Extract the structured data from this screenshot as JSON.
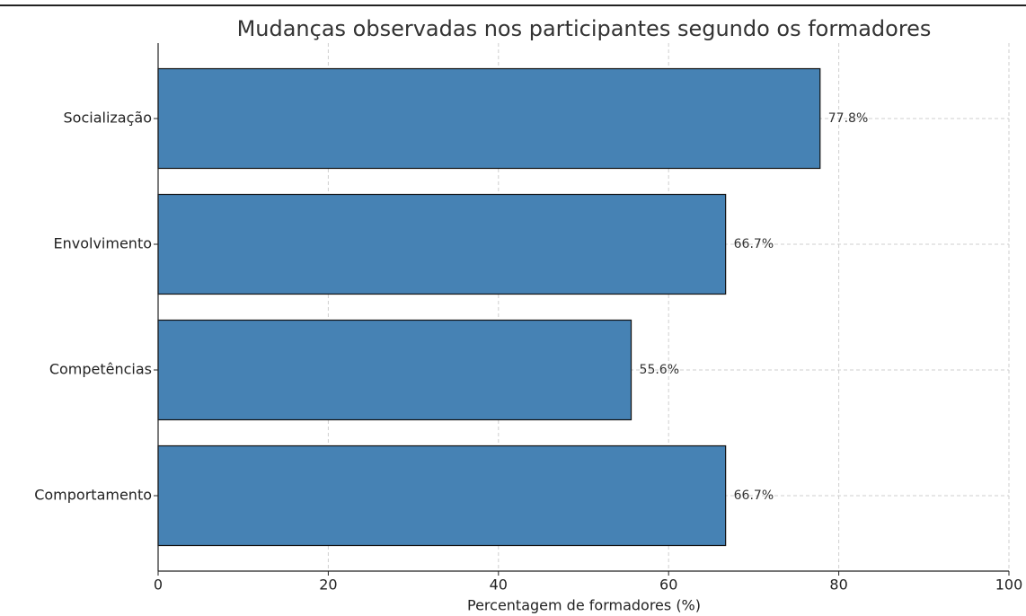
{
  "chart_data": {
    "type": "barh",
    "title": "Mudanças observadas nos participantes segundo os formadores",
    "xlabel": "Percentagem de formadores (%)",
    "categories": [
      "Socialização",
      "Envolvimento",
      "Competências",
      "Comportamento"
    ],
    "values": [
      77.8,
      66.7,
      55.6,
      66.7
    ],
    "value_labels": [
      "77.8%",
      "66.7%",
      "55.6%",
      "66.7%"
    ],
    "color": "#4682b4",
    "xlim": [
      0,
      100
    ],
    "xticks": [
      0,
      20,
      40,
      60,
      80,
      100
    ],
    "grid": true
  }
}
